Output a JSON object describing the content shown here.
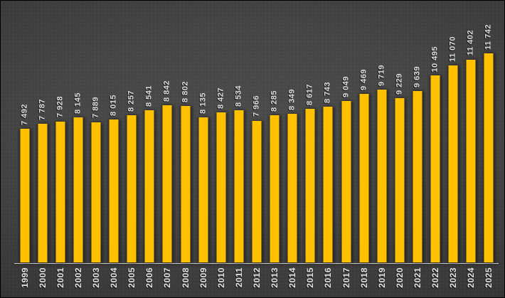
{
  "chart_data": {
    "type": "bar",
    "title": "",
    "xlabel": "",
    "ylabel": "",
    "legend": false,
    "grid": false,
    "ylim": [
      0,
      11742
    ],
    "categories": [
      "1999",
      "2000",
      "2001",
      "2002",
      "2003",
      "2004",
      "2005",
      "2006",
      "2007",
      "2008",
      "2009",
      "2010",
      "2011",
      "2012",
      "2013",
      "2014",
      "2015",
      "2016",
      "2017",
      "2018",
      "2019",
      "2020",
      "2021",
      "2022",
      "2023",
      "2024",
      "2025"
    ],
    "values": [
      7492,
      7787,
      7928,
      8145,
      7889,
      8015,
      8257,
      8541,
      8842,
      8802,
      8135,
      8427,
      8534,
      7966,
      8285,
      8349,
      8617,
      8743,
      9049,
      9469,
      9719,
      9229,
      9639,
      10495,
      11070,
      11402,
      11742
    ],
    "value_labels": [
      "7 492",
      "7 787",
      "7 928",
      "8 145",
      "7 889",
      "8 015",
      "8 257",
      "8 541",
      "8 842",
      "8 802",
      "8 135",
      "8 427",
      "8 534",
      "7 966",
      "8 285",
      "8 349",
      "8 617",
      "8 743",
      "9 049",
      "9 469",
      "9 719",
      "9 229",
      "9 639",
      "10 495",
      "11 070",
      "11 402",
      "11 742"
    ],
    "label_rotation": "vertical-bottom-to-top",
    "legend_position": "none",
    "colors": {
      "bar": "#FFC000",
      "background_center": "#4b4b4b",
      "background_edge": "#2a2a2a",
      "axis_line": "#c9c9c9",
      "data_label": "#dcdcdc",
      "category_label": "#e2e2e2"
    }
  }
}
